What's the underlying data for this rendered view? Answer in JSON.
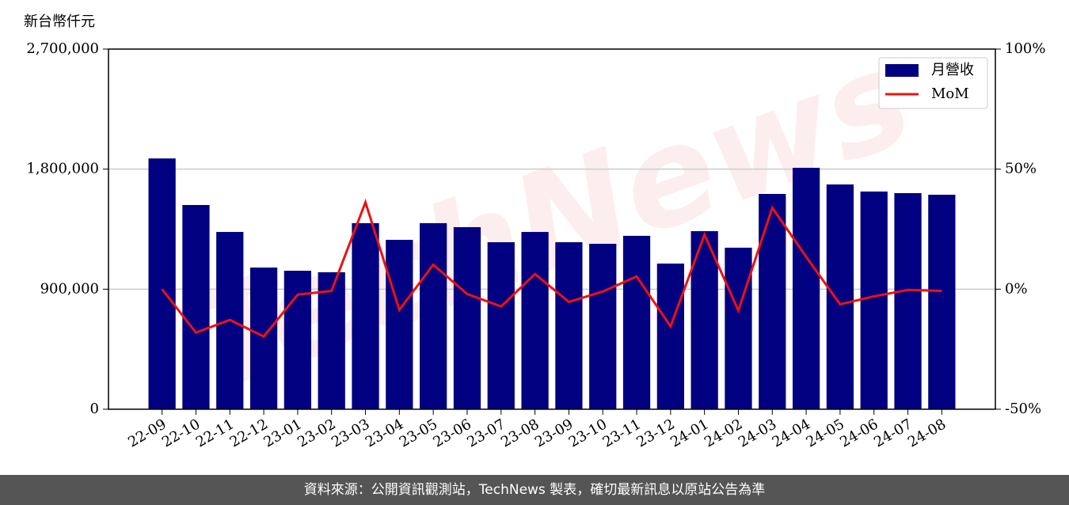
{
  "chart_data": {
    "type": "bar_line",
    "y_unit_label": "新台幣仟元",
    "watermark": "TechNews",
    "footer": "資料來源：公開資訊觀測站，TechNews 製表，確切最新訊息以原站公告為準",
    "categories": [
      "22-09",
      "22-10",
      "22-11",
      "22-12",
      "23-01",
      "23-02",
      "23-03",
      "23-04",
      "23-05",
      "23-06",
      "23-07",
      "23-08",
      "23-09",
      "23-10",
      "23-11",
      "23-12",
      "24-01",
      "24-02",
      "24-03",
      "24-04",
      "24-05",
      "24-06",
      "24-07",
      "24-08"
    ],
    "series": [
      {
        "name": "月營收",
        "type": "bar",
        "color": "#000080",
        "values": [
          1880000,
          1531000,
          1329000,
          1062000,
          1038000,
          1027000,
          1395000,
          1270000,
          1395000,
          1365000,
          1252000,
          1329000,
          1252000,
          1240000,
          1300000,
          1092000,
          1335000,
          1211000,
          1614000,
          1810000,
          1685000,
          1632000,
          1620000,
          1608000
        ]
      },
      {
        "name": "MoM",
        "type": "line",
        "axis": "y2",
        "color": "#ee1111",
        "values": [
          0,
          -18.1,
          -12.8,
          -19.7,
          -2.3,
          -0.7,
          36.2,
          -8.6,
          10.2,
          -2.0,
          -7.2,
          6.3,
          -5.3,
          -1.0,
          5.3,
          -15.5,
          22.7,
          -8.9,
          33.9,
          13.5,
          -6.3,
          -3.0,
          -0.3,
          -0.7
        ]
      }
    ],
    "ylim": [
      0,
      2700000
    ],
    "yticks": [
      0,
      {
        "value": 900000,
        "label": "900,000"
      },
      {
        "value": 1800000,
        "label": "1,800,000"
      },
      {
        "value": 2700000,
        "label": "2,700,000"
      }
    ],
    "y2lim": [
      -50,
      100
    ],
    "y2ticks": [
      {
        "value": -50,
        "label": "-50%"
      },
      {
        "value": 0,
        "label": "0%"
      },
      {
        "value": 50,
        "label": "50%"
      },
      {
        "value": 100,
        "label": "100%"
      }
    ],
    "grid": true,
    "legend": "upper right"
  }
}
